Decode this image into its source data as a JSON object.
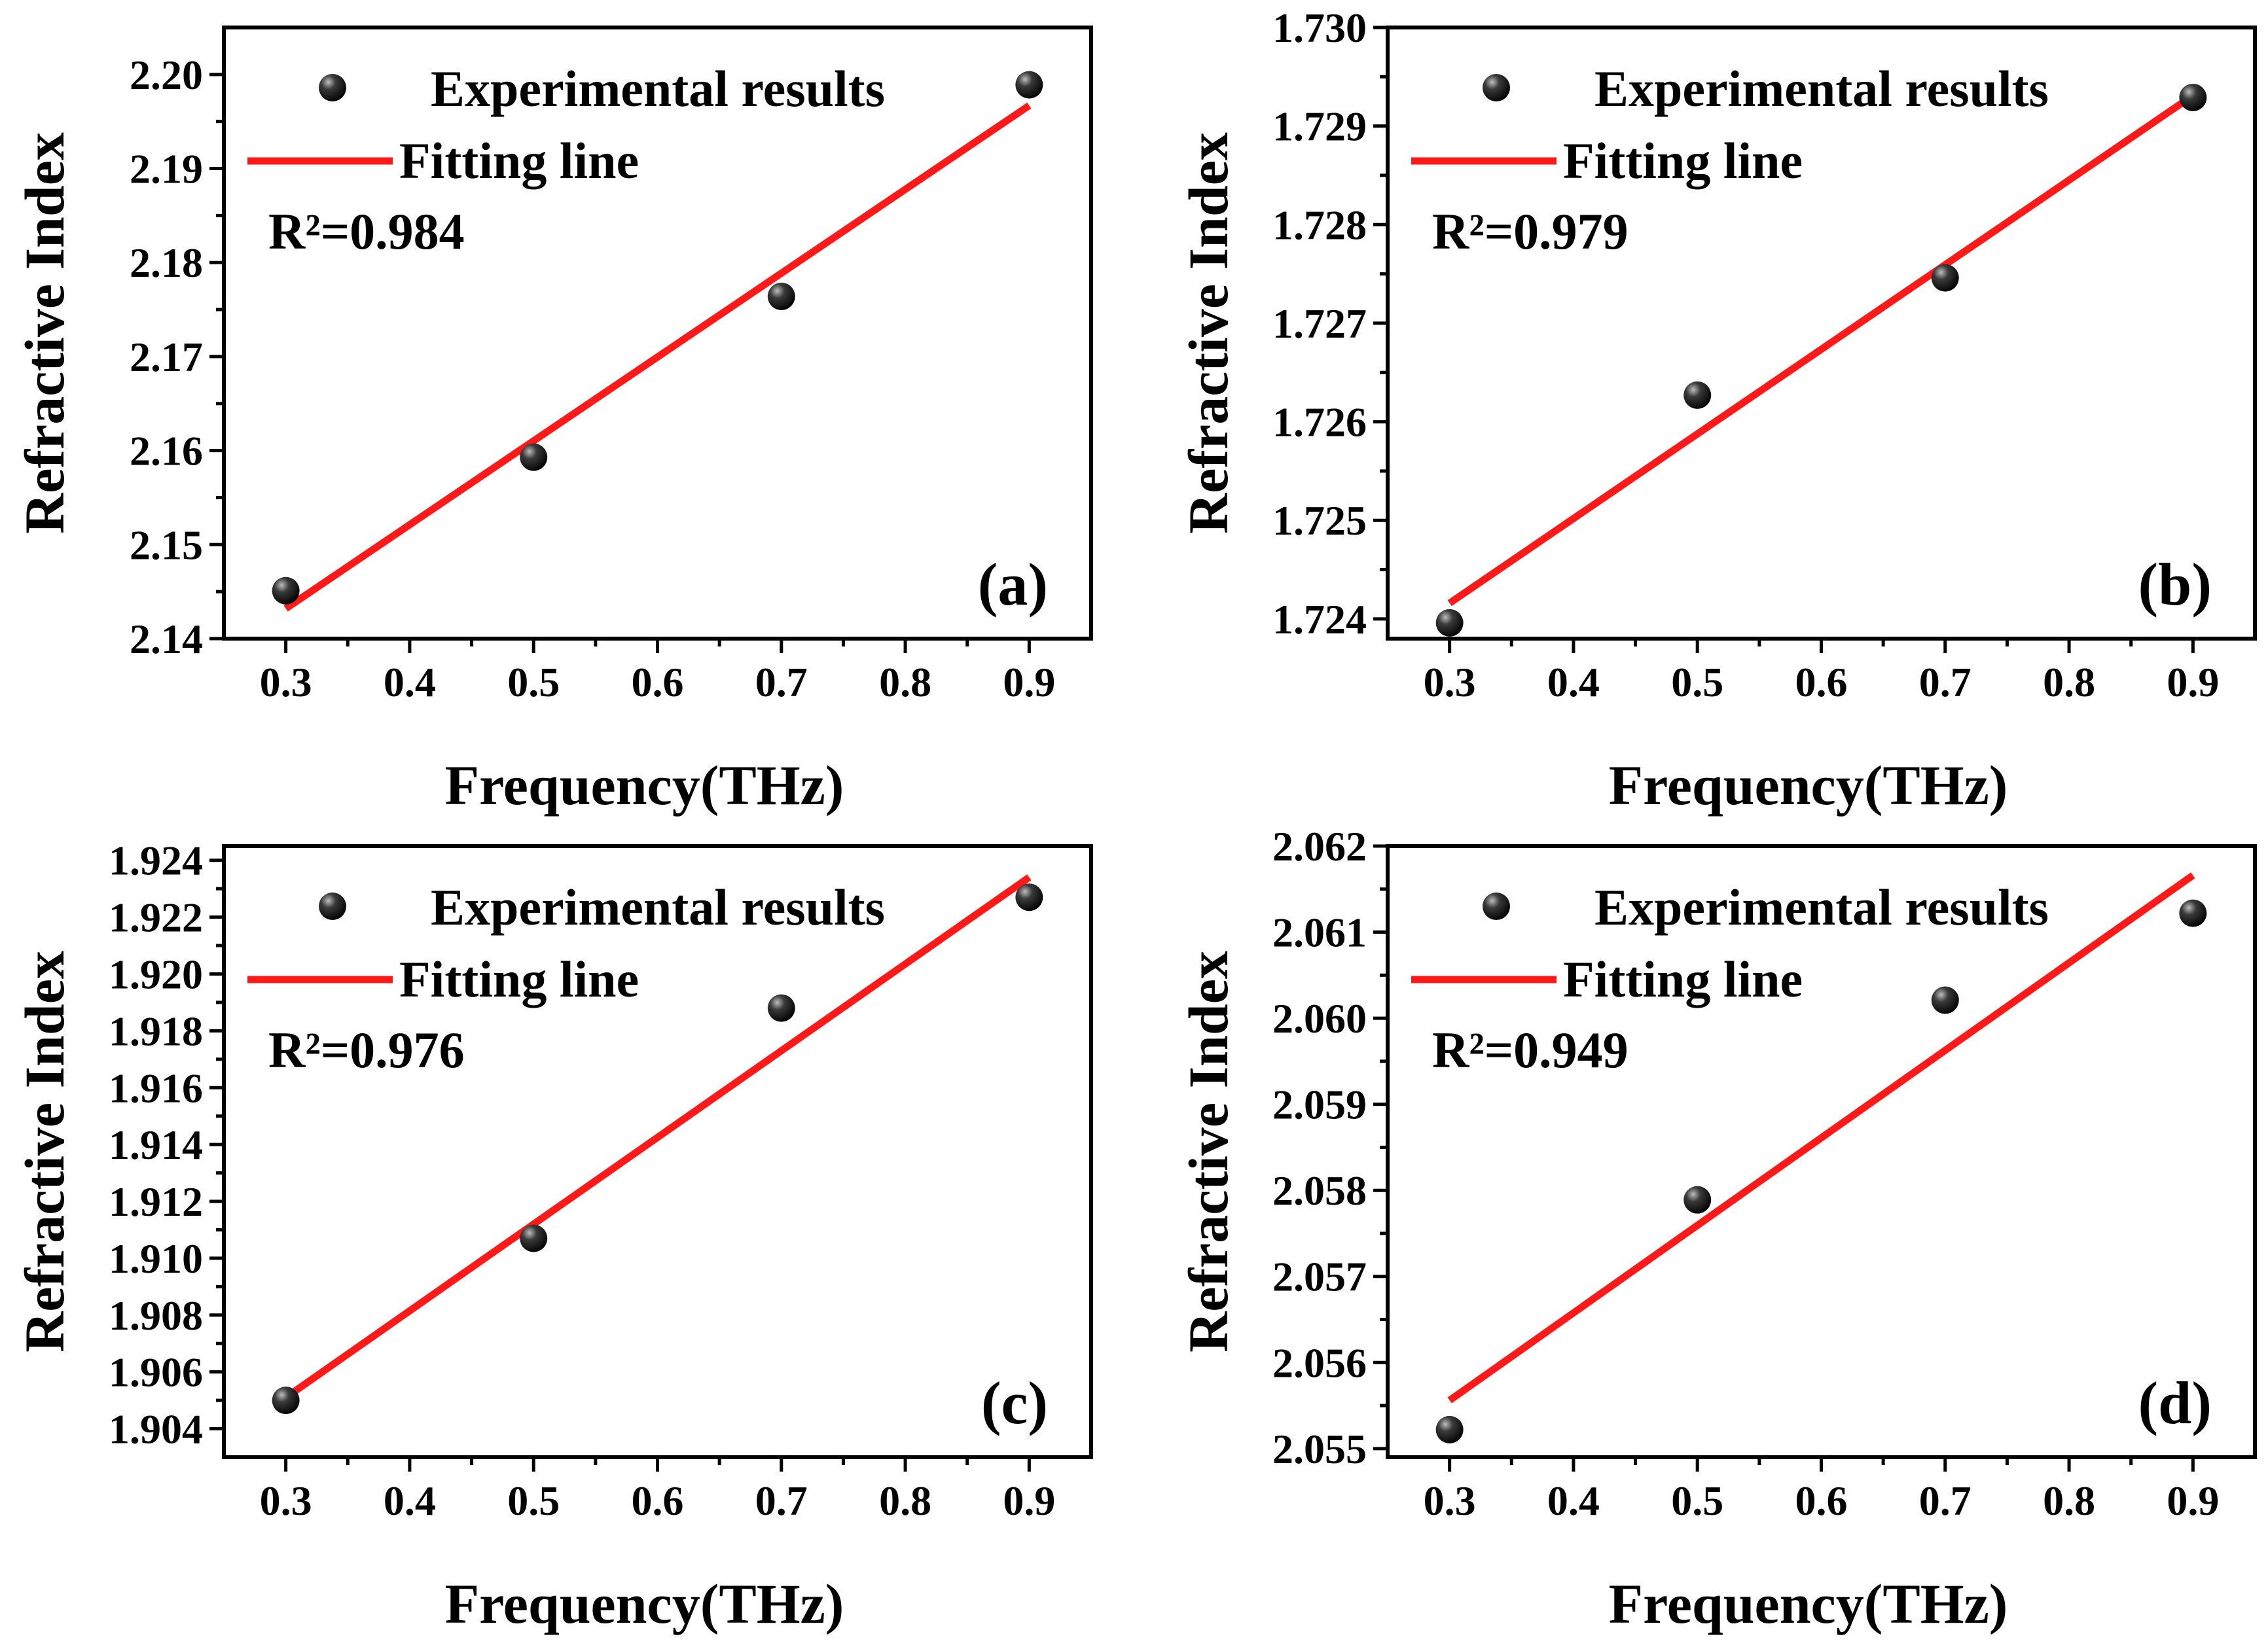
{
  "chart_data": [
    {
      "type": "scatter",
      "panel_label": "(a)",
      "xlabel": "Frequency(THz)",
      "ylabel": "Refractive Index",
      "xlim": [
        0.25,
        0.95
      ],
      "ylim": [
        2.14,
        2.205
      ],
      "x_ticks": [
        "0.3",
        "0.4",
        "0.5",
        "0.6",
        "0.7",
        "0.8",
        "0.9"
      ],
      "y_ticks": [
        "2.14",
        "2.15",
        "2.16",
        "2.17",
        "2.18",
        "2.19",
        "2.20"
      ],
      "legend": {
        "points": "Experimental results",
        "line": "Fitting line",
        "position": "top-left"
      },
      "r2_label": "R²=0.984",
      "series": [
        {
          "name": "Experimental results",
          "kind": "points",
          "x": [
            0.3,
            0.5,
            0.7,
            0.9
          ],
          "y": [
            2.1451,
            2.1593,
            2.1764,
            2.1989
          ]
        },
        {
          "name": "Fitting line",
          "kind": "line",
          "x": [
            0.3,
            0.9
          ],
          "y": [
            2.1432,
            2.1967
          ]
        }
      ]
    },
    {
      "type": "scatter",
      "panel_label": "(b)",
      "xlabel": "Frequency(THz)",
      "ylabel": "Refractive Index",
      "xlim": [
        0.25,
        0.95
      ],
      "ylim": [
        1.7238,
        1.73
      ],
      "x_ticks": [
        "0.3",
        "0.4",
        "0.5",
        "0.6",
        "0.7",
        "0.8",
        "0.9"
      ],
      "y_ticks": [
        "1.724",
        "1.725",
        "1.726",
        "1.727",
        "1.728",
        "1.729",
        "1.730"
      ],
      "legend": {
        "points": "Experimental results",
        "line": "Fitting line",
        "position": "top-left"
      },
      "r2_label": "R²=0.979",
      "series": [
        {
          "name": "Experimental results",
          "kind": "points",
          "x": [
            0.3,
            0.5,
            0.7,
            0.9
          ],
          "y": [
            1.72396,
            1.72627,
            1.72746,
            1.72929
          ]
        },
        {
          "name": "Fitting line",
          "kind": "line",
          "x": [
            0.3,
            0.9
          ],
          "y": [
            1.72416,
            1.72931
          ]
        }
      ]
    },
    {
      "type": "scatter",
      "panel_label": "(c)",
      "xlabel": "Frequency(THz)",
      "ylabel": "Refractive Index",
      "xlim": [
        0.25,
        0.95
      ],
      "ylim": [
        1.903,
        1.9245
      ],
      "x_ticks": [
        "0.3",
        "0.4",
        "0.5",
        "0.6",
        "0.7",
        "0.8",
        "0.9"
      ],
      "y_ticks": [
        "1.904",
        "1.906",
        "1.908",
        "1.910",
        "1.912",
        "1.914",
        "1.916",
        "1.918",
        "1.920",
        "1.922",
        "1.924"
      ],
      "legend": {
        "points": "Experimental results",
        "line": "Fitting line",
        "position": "top-left"
      },
      "r2_label": "R²=0.976",
      "series": [
        {
          "name": "Experimental results",
          "kind": "points",
          "x": [
            0.3,
            0.5,
            0.7,
            0.9
          ],
          "y": [
            1.905,
            1.9107,
            1.9188,
            1.9227
          ]
        },
        {
          "name": "Fitting line",
          "kind": "line",
          "x": [
            0.3,
            0.9
          ],
          "y": [
            1.9051,
            1.9234
          ]
        }
      ]
    },
    {
      "type": "scatter",
      "panel_label": "(d)",
      "xlabel": "Frequency(THz)",
      "ylabel": "Refractive Index",
      "xlim": [
        0.25,
        0.95
      ],
      "ylim": [
        2.0549,
        2.062
      ],
      "x_ticks": [
        "0.3",
        "0.4",
        "0.5",
        "0.6",
        "0.7",
        "0.8",
        "0.9"
      ],
      "y_ticks": [
        "2.055",
        "2.056",
        "2.057",
        "2.058",
        "2.059",
        "2.060",
        "2.061",
        "2.062"
      ],
      "legend": {
        "points": "Experimental results",
        "line": "Fitting line",
        "position": "top-left"
      },
      "r2_label": "R²=0.949",
      "series": [
        {
          "name": "Experimental results",
          "kind": "points",
          "x": [
            0.3,
            0.5,
            0.7,
            0.9
          ],
          "y": [
            2.05522,
            2.05789,
            2.06021,
            2.06122
          ]
        },
        {
          "name": "Fitting line",
          "kind": "line",
          "x": [
            0.3,
            0.9
          ],
          "y": [
            2.05556,
            2.06166
          ]
        }
      ]
    }
  ],
  "colors": {
    "fit": "#ff1a1a",
    "marker": "#111111",
    "axis": "#000000"
  }
}
